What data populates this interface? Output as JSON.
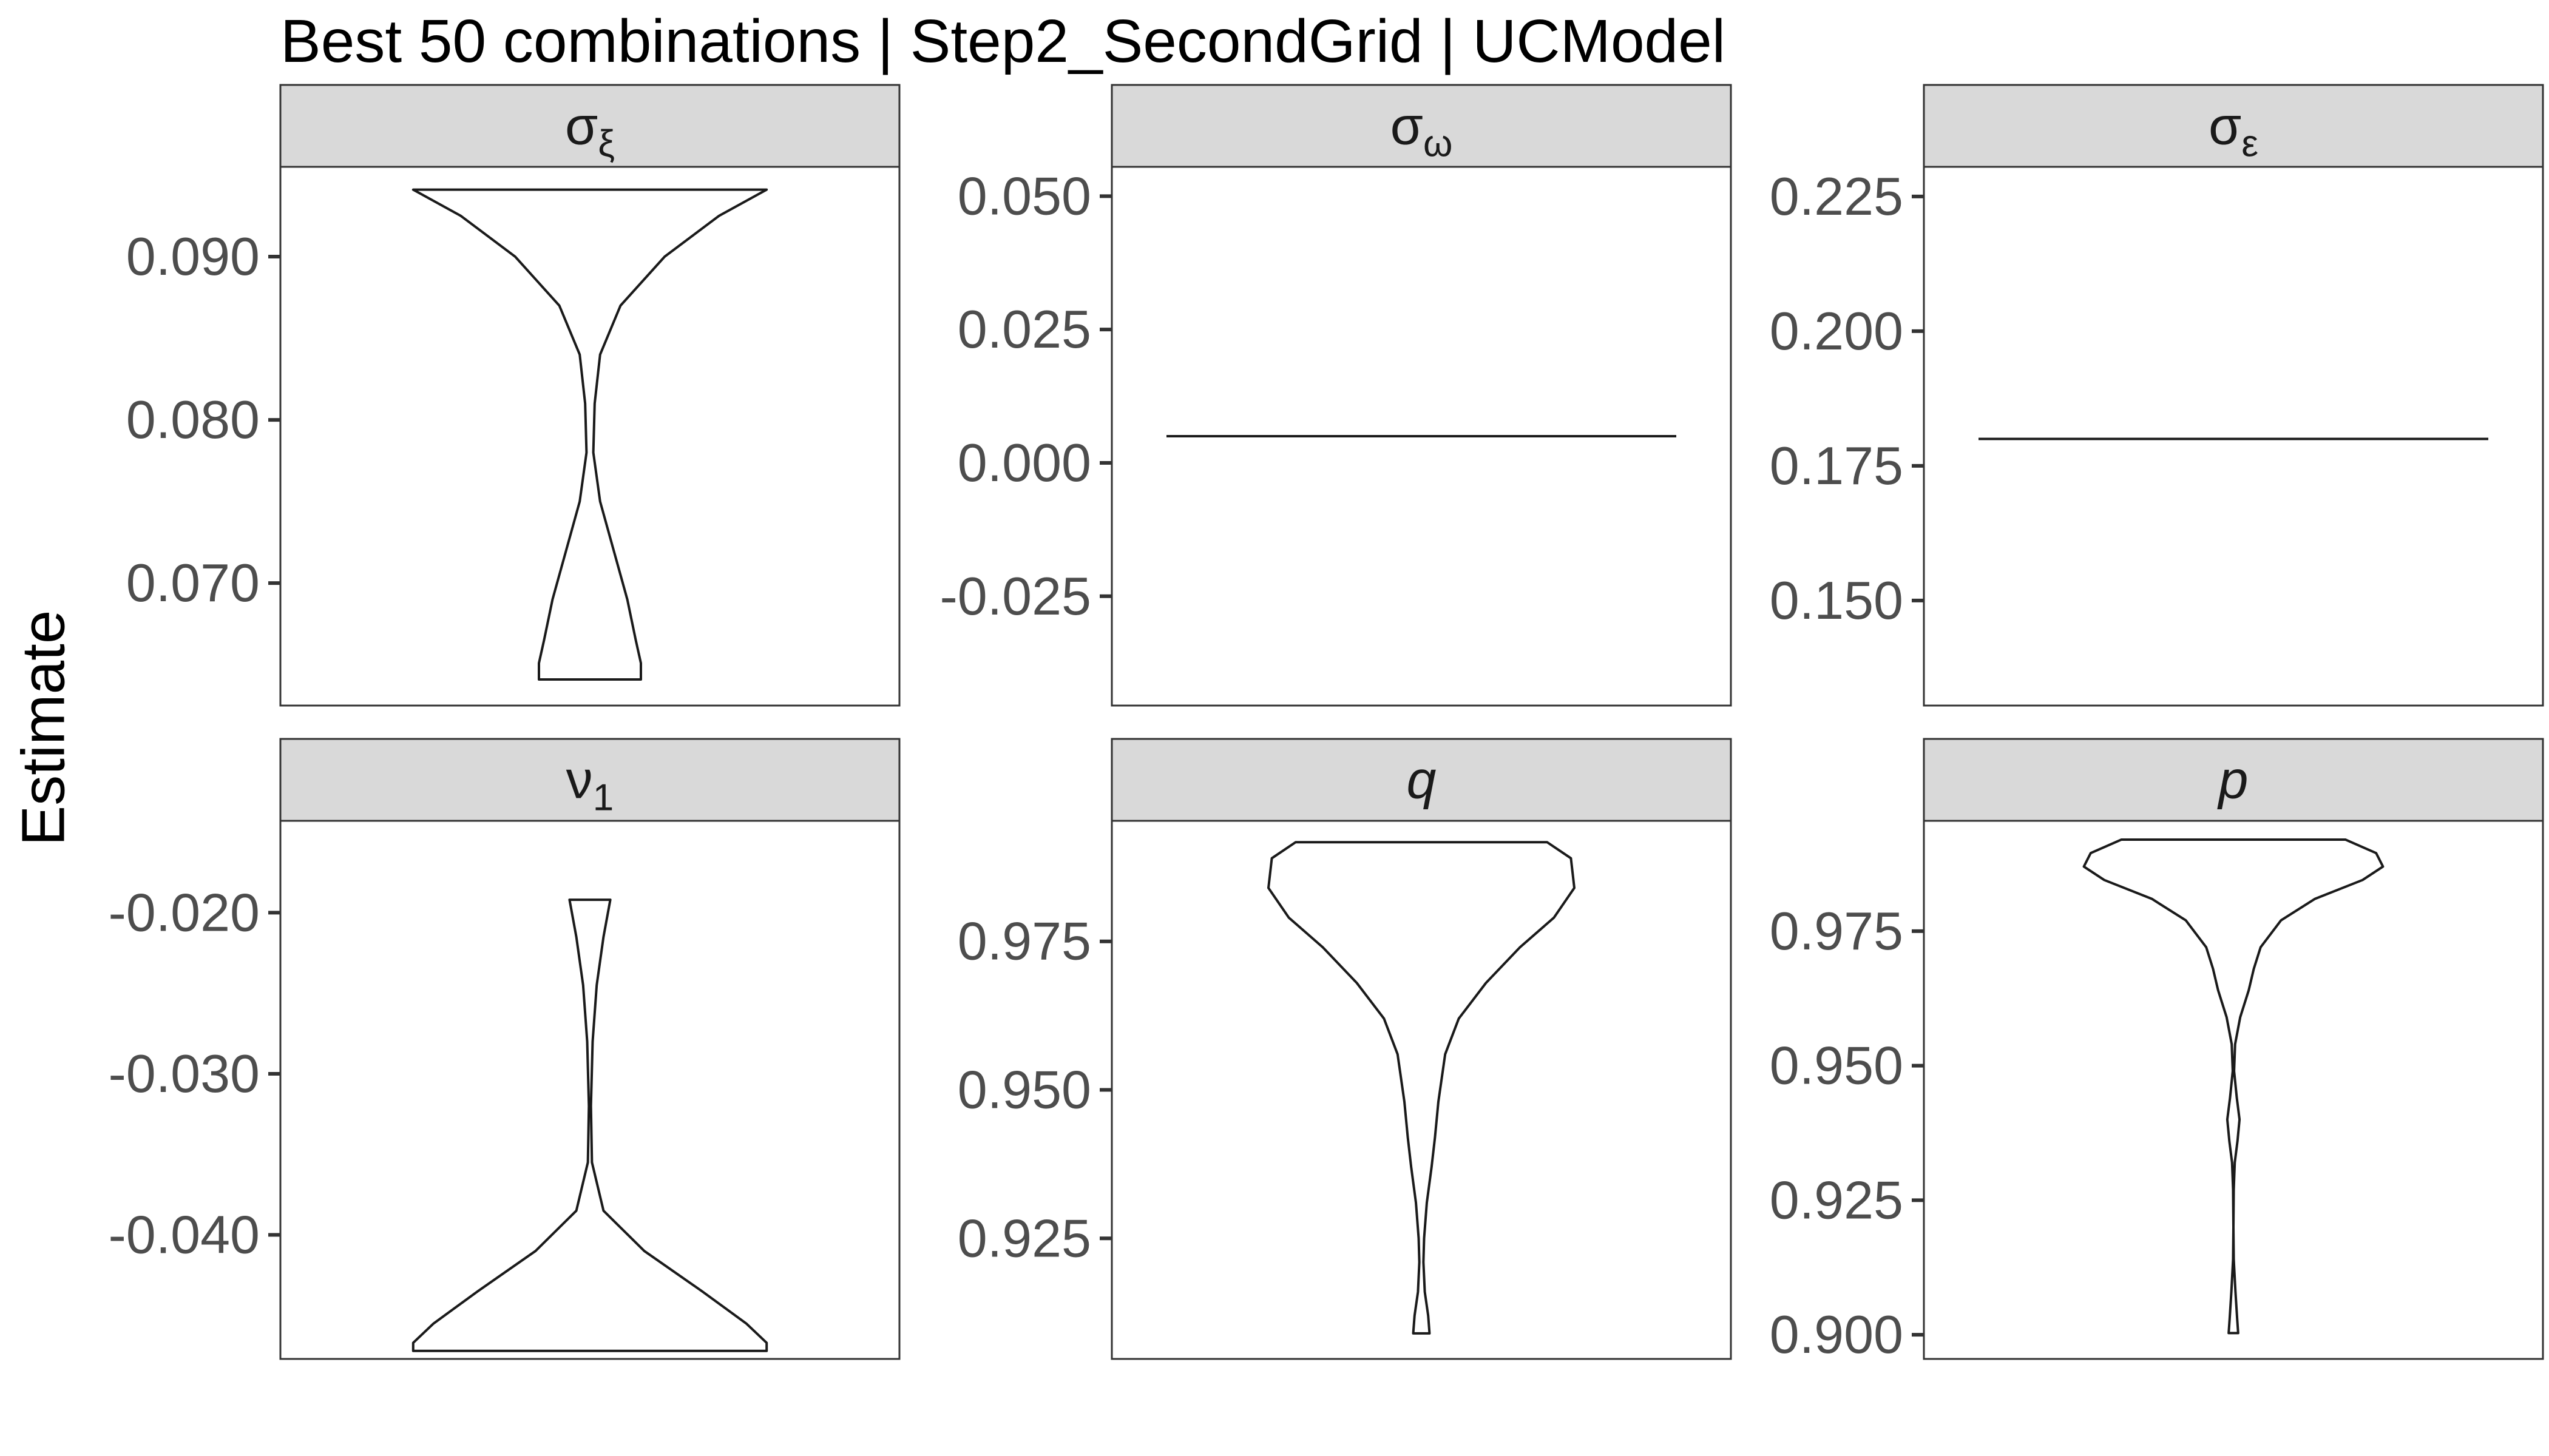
{
  "title": "Best 50 combinations | Step2_SecondGrid | UCModel",
  "ylabel": "Estimate",
  "colors": {
    "strip_fill": "#d9d9d9",
    "border": "#333333",
    "tick_text": "#4d4d4d",
    "violin_stroke": "#1a1a1a"
  },
  "chart_data": [
    {
      "type": "violin",
      "panel": "sigma_xi",
      "strip": {
        "base": "σ",
        "sub": "ξ",
        "italic": false
      },
      "ylim": [
        0.0625,
        0.0955
      ],
      "yticks": [
        0.07,
        0.08,
        0.09
      ],
      "ytick_labels": [
        "0.070",
        "0.080",
        "0.090"
      ],
      "grid": false,
      "density": [
        [
          0.0941,
          0.52
        ],
        [
          0.0925,
          0.38
        ],
        [
          0.09,
          0.22
        ],
        [
          0.087,
          0.09
        ],
        [
          0.084,
          0.03
        ],
        [
          0.081,
          0.014
        ],
        [
          0.078,
          0.01
        ],
        [
          0.075,
          0.03
        ],
        [
          0.072,
          0.07
        ],
        [
          0.069,
          0.11
        ],
        [
          0.0665,
          0.135
        ],
        [
          0.0651,
          0.15
        ],
        [
          0.0641,
          0.15
        ]
      ]
    },
    {
      "type": "violin",
      "panel": "sigma_omega",
      "strip": {
        "base": "σ",
        "sub": "ω",
        "italic": false
      },
      "ylim": [
        -0.0455,
        0.0555
      ],
      "yticks": [
        -0.025,
        0.0,
        0.025,
        0.05
      ],
      "ytick_labels": [
        "-0.025",
        "0.000",
        "0.025",
        "0.050"
      ],
      "grid": false,
      "density": [
        [
          0.005,
          0.75
        ],
        [
          0.005,
          0.75
        ]
      ]
    },
    {
      "type": "violin",
      "panel": "sigma_epsilon",
      "strip": {
        "base": "σ",
        "sub": "ε",
        "italic": false
      },
      "ylim": [
        0.1305,
        0.2305
      ],
      "yticks": [
        0.15,
        0.175,
        0.2,
        0.225
      ],
      "ytick_labels": [
        "0.150",
        "0.175",
        "0.200",
        "0.225"
      ],
      "grid": false,
      "density": [
        [
          0.18,
          0.75
        ],
        [
          0.18,
          0.75
        ]
      ]
    },
    {
      "type": "violin",
      "panel": "nu_1",
      "strip": {
        "base": "ν",
        "sub": "1",
        "italic": false
      },
      "ylim": [
        -0.0477,
        -0.0143
      ],
      "yticks": [
        -0.04,
        -0.03,
        -0.02
      ],
      "ytick_labels": [
        "-0.040",
        "-0.030",
        "-0.020"
      ],
      "grid": false,
      "density": [
        [
          -0.0192,
          0.06
        ],
        [
          -0.0215,
          0.04
        ],
        [
          -0.0245,
          0.02
        ],
        [
          -0.028,
          0.008
        ],
        [
          -0.032,
          0.003
        ],
        [
          -0.0355,
          0.006
        ],
        [
          -0.0385,
          0.04
        ],
        [
          -0.041,
          0.16
        ],
        [
          -0.0435,
          0.33
        ],
        [
          -0.0455,
          0.46
        ],
        [
          -0.0467,
          0.52
        ],
        [
          -0.0472,
          0.52
        ]
      ]
    },
    {
      "type": "violin",
      "panel": "q",
      "strip": {
        "base": "q",
        "sub": "",
        "italic": true
      },
      "ylim": [
        0.9047,
        0.9953
      ],
      "yticks": [
        0.925,
        0.95,
        0.975
      ],
      "ytick_labels": [
        "0.925",
        "0.950",
        "0.975"
      ],
      "grid": false,
      "density": [
        [
          0.9917,
          0.37
        ],
        [
          0.989,
          0.44
        ],
        [
          0.984,
          0.45
        ],
        [
          0.979,
          0.39
        ],
        [
          0.974,
          0.29
        ],
        [
          0.968,
          0.19
        ],
        [
          0.962,
          0.11
        ],
        [
          0.956,
          0.07
        ],
        [
          0.948,
          0.05
        ],
        [
          0.942,
          0.04
        ],
        [
          0.937,
          0.03
        ],
        [
          0.931,
          0.016
        ],
        [
          0.925,
          0.008
        ],
        [
          0.921,
          0.006
        ],
        [
          0.916,
          0.01
        ],
        [
          0.912,
          0.02
        ],
        [
          0.909,
          0.024
        ]
      ]
    },
    {
      "type": "violin",
      "panel": "p",
      "strip": {
        "base": "p",
        "sub": "",
        "italic": true
      },
      "ylim": [
        0.8955,
        0.9955
      ],
      "yticks": [
        0.9,
        0.925,
        0.95,
        0.975
      ],
      "ytick_labels": [
        "0.900",
        "0.925",
        "0.950",
        "0.975"
      ],
      "grid": false,
      "density": [
        [
          0.992,
          0.33
        ],
        [
          0.9895,
          0.42
        ],
        [
          0.987,
          0.44
        ],
        [
          0.9845,
          0.38
        ],
        [
          0.981,
          0.24
        ],
        [
          0.977,
          0.14
        ],
        [
          0.972,
          0.08
        ],
        [
          0.968,
          0.06
        ],
        [
          0.964,
          0.045
        ],
        [
          0.959,
          0.02
        ],
        [
          0.954,
          0.005
        ],
        [
          0.949,
          0.002
        ],
        [
          0.944,
          0.01
        ],
        [
          0.94,
          0.018
        ],
        [
          0.936,
          0.012
        ],
        [
          0.932,
          0.004
        ],
        [
          0.927,
          0.001
        ],
        [
          0.92,
          0.0
        ],
        [
          0.914,
          0.001
        ],
        [
          0.908,
          0.006
        ],
        [
          0.903,
          0.011
        ],
        [
          0.9003,
          0.014
        ]
      ]
    }
  ]
}
